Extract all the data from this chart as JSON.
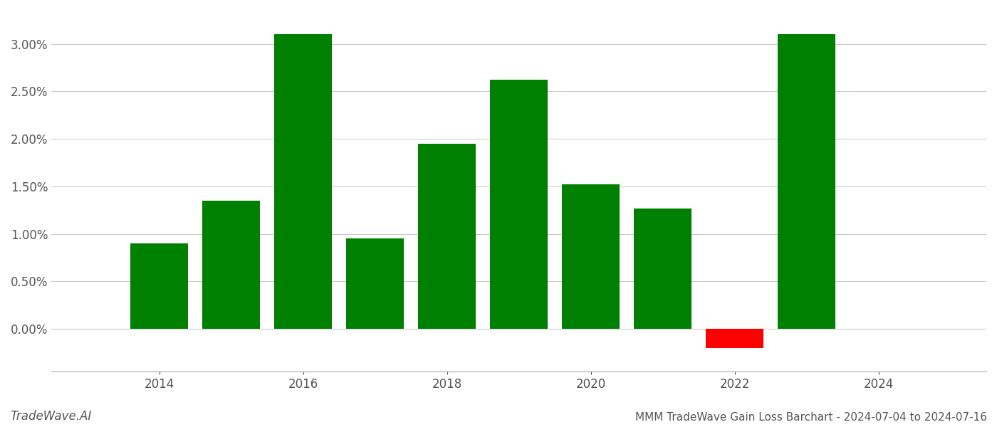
{
  "years": [
    2014,
    2015,
    2016,
    2017,
    2018,
    2019,
    2020,
    2021,
    2022,
    2023
  ],
  "values": [
    0.009,
    0.0135,
    0.031,
    0.0095,
    0.0195,
    0.0262,
    0.0152,
    0.0127,
    -0.002,
    0.031
  ],
  "bar_colors": [
    "#008000",
    "#008000",
    "#008000",
    "#008000",
    "#008000",
    "#008000",
    "#008000",
    "#008000",
    "#ff0000",
    "#008000"
  ],
  "title": "MMM TradeWave Gain Loss Barchart - 2024-07-04 to 2024-07-16",
  "watermark": "TradeWave.AI",
  "xlim": [
    2012.5,
    2025.5
  ],
  "ylim": [
    -0.0045,
    0.0335
  ],
  "yticks": [
    0.0,
    0.005,
    0.01,
    0.015,
    0.02,
    0.025,
    0.03
  ],
  "xticks": [
    2014,
    2016,
    2018,
    2020,
    2022,
    2024
  ],
  "bar_width": 0.8,
  "grid_color": "#cccccc",
  "background_color": "#ffffff",
  "title_fontsize": 11,
  "watermark_fontsize": 12,
  "tick_fontsize": 12
}
